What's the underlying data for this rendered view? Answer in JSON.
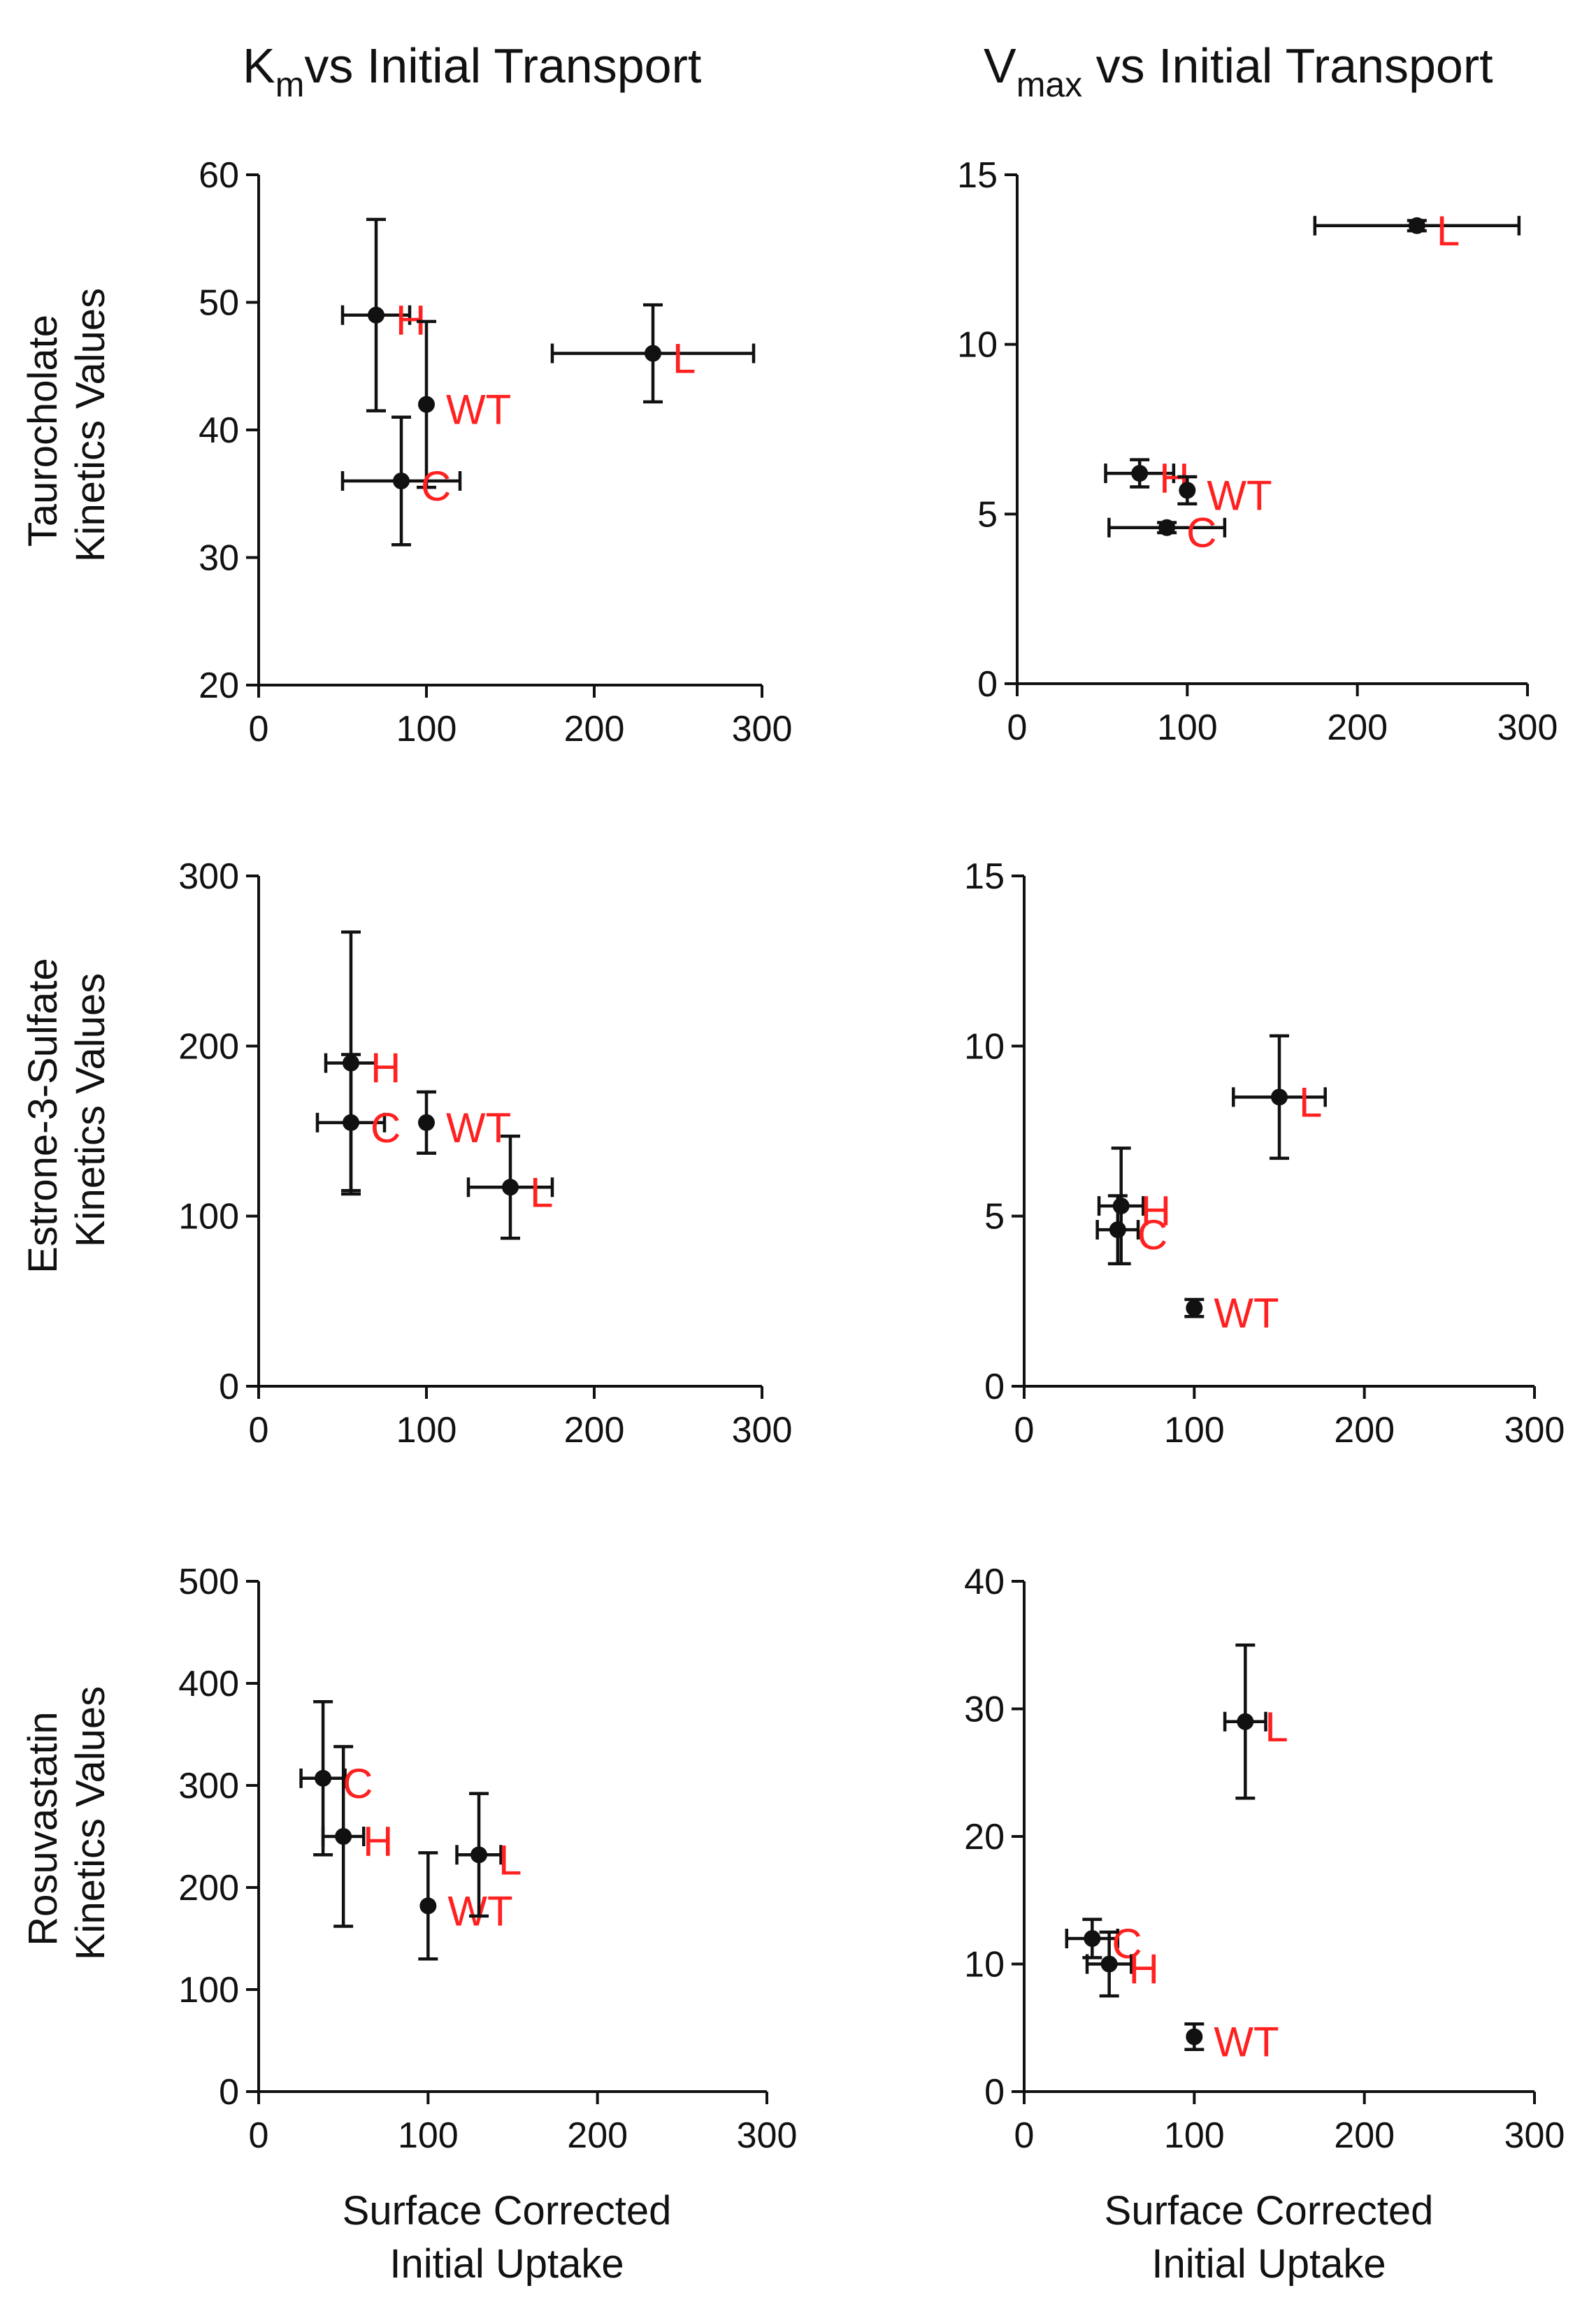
{
  "figure": {
    "col_titles": [
      {
        "main": "K",
        "sub": "m",
        "rest": "vs Initial Transport"
      },
      {
        "main": "V",
        "sub": "max",
        "rest": " vs Initial Transport"
      }
    ],
    "row_labels": [
      [
        "Taurocholate",
        "Kinetics Values"
      ],
      [
        "Estrone-3-Sulfate",
        "Kinetics Values"
      ],
      [
        "Rosuvastatin",
        "Kinetics Values"
      ]
    ],
    "x_axis_title": [
      "Surface Corrected",
      "Initial Uptake"
    ],
    "colors": {
      "marker": "#111111",
      "label": "#ff2020",
      "axis": "#111111"
    }
  },
  "chart_data": [
    {
      "id": "taurocholate-km",
      "type": "scatter",
      "title": "Km vs Initial Transport",
      "ylabel": "Taurocholate Kinetics Values",
      "xlabel": "",
      "xlim": [
        0,
        300
      ],
      "ylim": [
        20,
        60
      ],
      "xticks": [
        0,
        100,
        200,
        300
      ],
      "yticks": [
        20,
        30,
        40,
        50,
        60
      ],
      "points": [
        {
          "label": "H",
          "x": 70,
          "y": 49,
          "xerr": 20,
          "yerr": 7.5
        },
        {
          "label": "WT",
          "x": 100,
          "y": 42,
          "xerr": 0,
          "yerr": 6.5
        },
        {
          "label": "C",
          "x": 85,
          "y": 36,
          "xerr": 35,
          "yerr": 5
        },
        {
          "label": "L",
          "x": 235,
          "y": 46,
          "xerr": 60,
          "yerr": 3.8
        }
      ]
    },
    {
      "id": "taurocholate-vmax",
      "type": "scatter",
      "title": "Vmax vs Initial Transport",
      "ylabel": "",
      "xlabel": "",
      "xlim": [
        0,
        300
      ],
      "ylim": [
        0,
        15
      ],
      "xticks": [
        0,
        100,
        200,
        300
      ],
      "yticks": [
        0,
        5,
        10,
        15
      ],
      "points": [
        {
          "label": "H",
          "x": 72,
          "y": 6.2,
          "xerr": 20,
          "yerr": 0.4
        },
        {
          "label": "WT",
          "x": 100,
          "y": 5.7,
          "xerr": 0,
          "yerr": 0.4
        },
        {
          "label": "C",
          "x": 88,
          "y": 4.6,
          "xerr": 34,
          "yerr": 0.15
        },
        {
          "label": "L",
          "x": 235,
          "y": 13.5,
          "xerr": 60,
          "yerr": 0.15
        }
      ]
    },
    {
      "id": "estrone-km",
      "type": "scatter",
      "title": "",
      "ylabel": "Estrone-3-Sulfate Kinetics Values",
      "xlabel": "",
      "xlim": [
        0,
        300
      ],
      "ylim": [
        0,
        300
      ],
      "xticks": [
        0,
        100,
        200,
        300
      ],
      "yticks": [
        0,
        100,
        200,
        300
      ],
      "points": [
        {
          "label": "H",
          "x": 55,
          "y": 190,
          "xerr": 15,
          "yerr": 77
        },
        {
          "label": "C",
          "x": 55,
          "y": 155,
          "xerr": 20,
          "yerr": 40
        },
        {
          "label": "WT",
          "x": 100,
          "y": 155,
          "xerr": 0,
          "yerr": 18
        },
        {
          "label": "L",
          "x": 150,
          "y": 117,
          "xerr": 25,
          "yerr": 30
        }
      ]
    },
    {
      "id": "estrone-vmax",
      "type": "scatter",
      "title": "",
      "ylabel": "",
      "xlabel": "",
      "xlim": [
        0,
        300
      ],
      "ylim": [
        0,
        15
      ],
      "xticks": [
        0,
        100,
        200,
        300
      ],
      "yticks": [
        0,
        5,
        10,
        15
      ],
      "points": [
        {
          "label": "H",
          "x": 57,
          "y": 5.3,
          "xerr": 13,
          "yerr": 1.7
        },
        {
          "label": "C",
          "x": 55,
          "y": 4.6,
          "xerr": 12,
          "yerr": 1.0
        },
        {
          "label": "WT",
          "x": 100,
          "y": 2.3,
          "xerr": 0,
          "yerr": 0.25
        },
        {
          "label": "L",
          "x": 150,
          "y": 8.5,
          "xerr": 27,
          "yerr": 1.8
        }
      ]
    },
    {
      "id": "rosuvastatin-km",
      "type": "scatter",
      "title": "",
      "ylabel": "Rosuvastatin Kinetics Values",
      "xlabel": "Surface Corrected Initial Uptake",
      "xlim": [
        0,
        300
      ],
      "ylim": [
        0,
        500
      ],
      "xticks": [
        0,
        100,
        200,
        300
      ],
      "yticks": [
        0,
        100,
        200,
        300,
        400,
        500
      ],
      "points": [
        {
          "label": "C",
          "x": 38,
          "y": 307,
          "xerr": 13,
          "yerr": 75
        },
        {
          "label": "H",
          "x": 50,
          "y": 250,
          "xerr": 12,
          "yerr": 88
        },
        {
          "label": "WT",
          "x": 100,
          "y": 182,
          "xerr": 0,
          "yerr": 52
        },
        {
          "label": "L",
          "x": 130,
          "y": 232,
          "xerr": 13,
          "yerr": 60
        }
      ]
    },
    {
      "id": "rosuvastatin-vmax",
      "type": "scatter",
      "title": "",
      "ylabel": "",
      "xlabel": "Surface Corrected Initial Uptake",
      "xlim": [
        0,
        300
      ],
      "ylim": [
        0,
        40
      ],
      "xticks": [
        0,
        100,
        200,
        300
      ],
      "yticks": [
        0,
        10,
        20,
        30,
        40
      ],
      "points": [
        {
          "label": "C",
          "x": 40,
          "y": 12,
          "xerr": 15,
          "yerr": 1.5
        },
        {
          "label": "H",
          "x": 50,
          "y": 10,
          "xerr": 13,
          "yerr": 2.5
        },
        {
          "label": "WT",
          "x": 100,
          "y": 4.3,
          "xerr": 0,
          "yerr": 1.0
        },
        {
          "label": "L",
          "x": 130,
          "y": 29,
          "xerr": 12,
          "yerr": 6
        }
      ]
    }
  ]
}
